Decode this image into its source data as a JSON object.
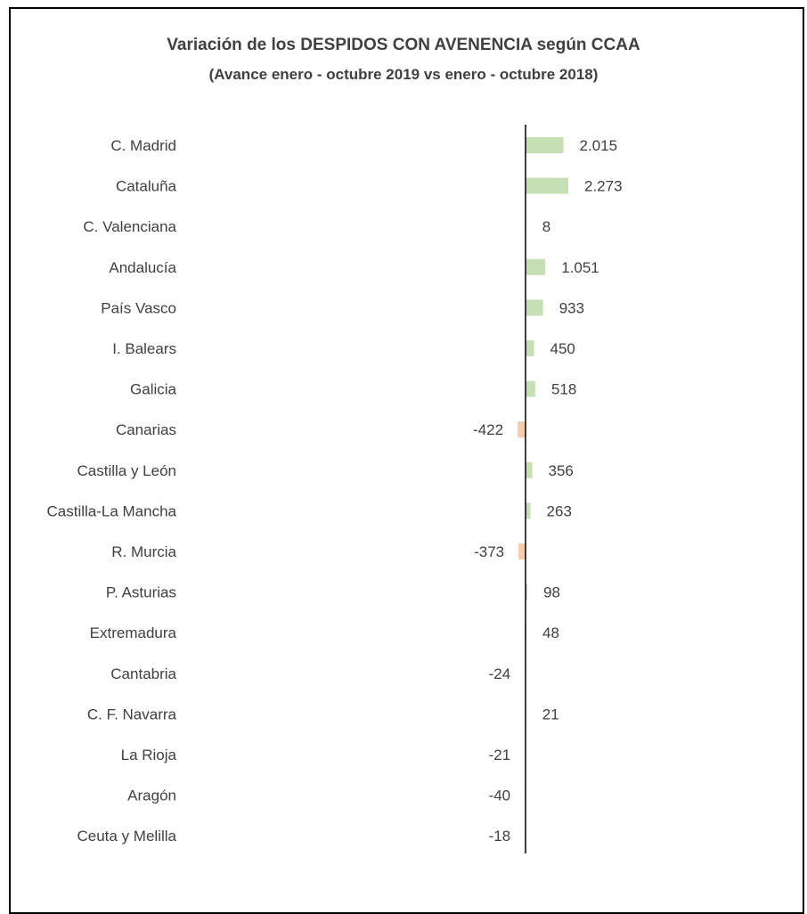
{
  "chart_data": {
    "type": "bar",
    "orientation": "horizontal",
    "title": "Variación de los DESPIDOS CON AVENENCIA según CCAA",
    "subtitle": "(Avance enero - octubre 2019 vs enero - octubre 2018)",
    "categories": [
      "C. Madrid",
      "Cataluña",
      "C. Valenciana",
      "Andalucía",
      "País Vasco",
      "I. Balears",
      "Galicia",
      "Canarias",
      "Castilla y León",
      "Castilla-La Mancha",
      "R. Murcia",
      "P. Asturias",
      "Extremadura",
      "Cantabria",
      "C. F. Navarra",
      "La Rioja",
      "Aragón",
      "Ceuta y Melilla"
    ],
    "values": [
      2015,
      2273,
      8,
      1051,
      933,
      450,
      518,
      -422,
      356,
      263,
      -373,
      98,
      48,
      -24,
      21,
      -21,
      -40,
      -18
    ],
    "value_labels": [
      "2.015",
      "2.273",
      "8",
      "1.051",
      "933",
      "450",
      "518",
      "-422",
      "356",
      "263",
      "-373",
      "98",
      "48",
      "-24",
      "21",
      "-21",
      "-40",
      "-18"
    ],
    "xlim": [
      -2000,
      12000
    ],
    "grid": false,
    "legend": "none",
    "colors": {
      "positive": "#c6e0b4",
      "negative": "#f8cbad",
      "axis": "#000000",
      "text": "#404040"
    }
  }
}
